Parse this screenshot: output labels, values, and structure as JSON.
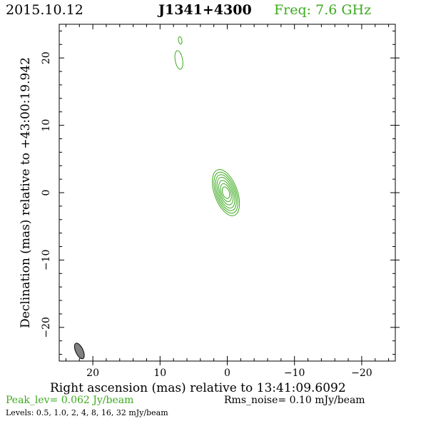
{
  "header": {
    "date": "2015.10.12",
    "source": "J1341+4300",
    "freq_label": "Freq: 7.6 GHz"
  },
  "colors": {
    "contour": "#3caa1e",
    "beam_fill": "#808080",
    "axis": "#000000"
  },
  "chart_data": {
    "type": "contour",
    "xlabel": "Right ascension (mas) relative to 13:41:09.6092",
    "ylabel": "Declination (mas) relative to +43:00:19.942",
    "xlim": [
      25,
      -25
    ],
    "ylim": [
      -25,
      25
    ],
    "xticks": [
      20,
      10,
      0,
      -10,
      -20
    ],
    "yticks": [
      20,
      10,
      0,
      -10,
      -20
    ],
    "xtick_labels": [
      "20",
      "10",
      "0",
      "−10",
      "−20"
    ],
    "ytick_labels": [
      "20",
      "10",
      "0",
      "−10",
      "−20"
    ],
    "peak_label": "Peak_lev=  0.062 Jy/beam",
    "rms_label": "Rms_noise= 0.10 mJy/beam",
    "levels_label": "Levels: 0.5, 1.0,    2,    4,    8,   16,   32 mJy/beam",
    "levels_mJy": [
      0.5,
      1.0,
      2,
      4,
      8,
      16,
      32
    ],
    "core": {
      "center": [
        0.2,
        0.0
      ],
      "tilt_deg": 20,
      "semi_axes": [
        [
          1.7,
          3.6
        ],
        [
          1.5,
          3.2
        ],
        [
          1.3,
          2.8
        ],
        [
          1.1,
          2.4
        ],
        [
          0.9,
          1.9
        ],
        [
          0.7,
          1.4
        ],
        [
          0.5,
          0.9
        ]
      ]
    },
    "components": [
      {
        "center": [
          7.2,
          19.7
        ],
        "semi_axes": [
          0.55,
          1.4
        ],
        "tilt_deg": 10
      },
      {
        "center": [
          7.0,
          22.6
        ],
        "semi_axes": [
          0.25,
          0.55
        ],
        "tilt_deg": 10
      }
    ],
    "beam": {
      "center": [
        22.0,
        -23.5
      ],
      "semi_axes": [
        0.55,
        1.25
      ],
      "tilt_deg": 25
    }
  }
}
